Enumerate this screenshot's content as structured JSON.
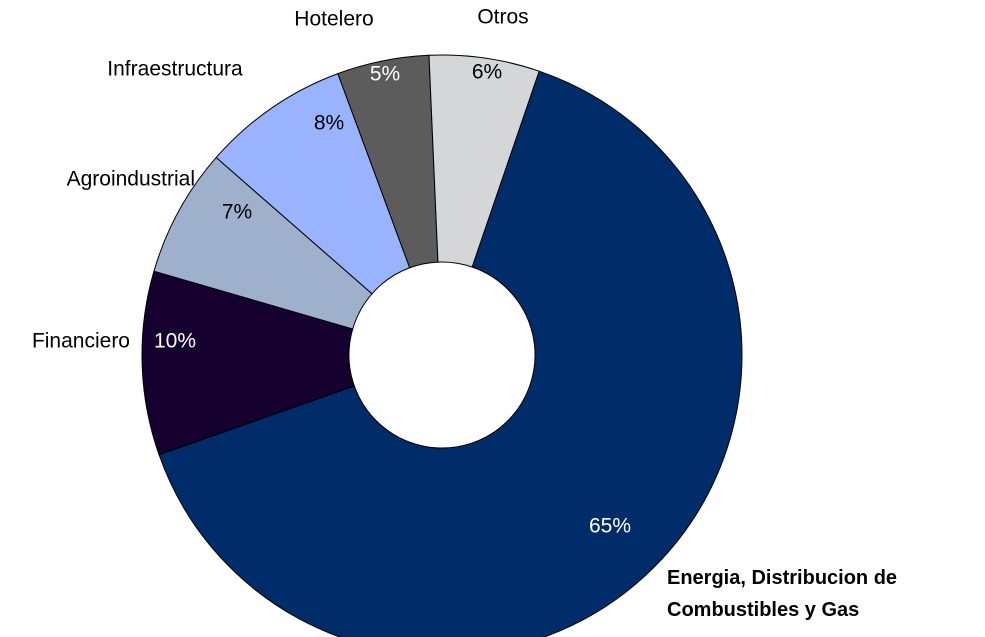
{
  "chart_data": {
    "type": "donut",
    "categories": [
      "Energia, Distribucion de Combustibles y Gas",
      "Financiero",
      "Agroindustrial",
      "Infraestructura",
      "Hotelero",
      "Otros"
    ],
    "values": [
      65,
      10,
      7,
      8,
      5,
      6
    ],
    "value_labels": [
      "65%",
      "10%",
      "7%",
      "8%",
      "5%",
      "6%"
    ],
    "colors": [
      "#002c6a",
      "#150030",
      "#9fb0cc",
      "#99b3ff",
      "#5c5c5c",
      "#d5d6d8"
    ]
  }
}
